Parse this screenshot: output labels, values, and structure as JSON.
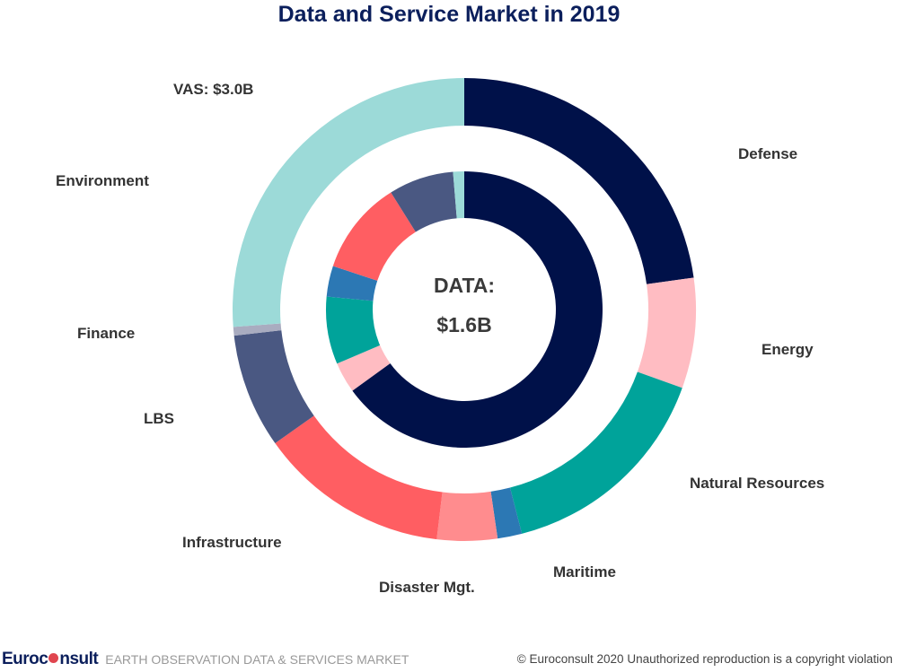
{
  "chart_data": {
    "type": "pie",
    "title": "Data and Service Market in 2019",
    "rings": [
      {
        "name": "VAS: $3.0B",
        "ring": "outer",
        "unit": "share of ring (%)",
        "categories": [
          "Defense",
          "Energy",
          "Natural Resources",
          "Maritime",
          "Disaster Mgt.",
          "Infrastructure",
          "LBS",
          "Finance",
          "Environment"
        ],
        "values": [
          22.8,
          7.7,
          15.5,
          1.7,
          4.2,
          13.3,
          8.0,
          0.6,
          26.2
        ],
        "colors": [
          "#001149",
          "#ffbcc2",
          "#00a39a",
          "#2c78b4",
          "#ff8c8e",
          "#ff5e62",
          "#4a5882",
          "#a9acc0",
          "#9cdad8"
        ]
      },
      {
        "name": "DATA: $1.6B",
        "ring": "inner",
        "unit": "share of ring (%)",
        "categories": [
          "Defense",
          "Energy",
          "Natural Resources",
          "Maritime",
          "Infrastructure",
          "LBS",
          "Environment"
        ],
        "values": [
          65.0,
          3.6,
          7.9,
          3.6,
          11.0,
          7.6,
          1.3
        ],
        "colors": [
          "#001149",
          "#ffbcc2",
          "#00a39a",
          "#2c78b4",
          "#ff5e62",
          "#4a5882",
          "#9cdad8"
        ]
      }
    ],
    "center_label_line1": "DATA:",
    "center_label_line2": "$1.6B",
    "outer_label": "VAS: $3.0B",
    "legend": "none; labels placed around the chart"
  },
  "footer": {
    "brand": "Euroconsult",
    "subtitle": "EARTH OBSERVATION DATA & SERVICES MARKET",
    "copyright": "© Euroconsult 2020   Unauthorized reproduction is a copyright violation"
  }
}
